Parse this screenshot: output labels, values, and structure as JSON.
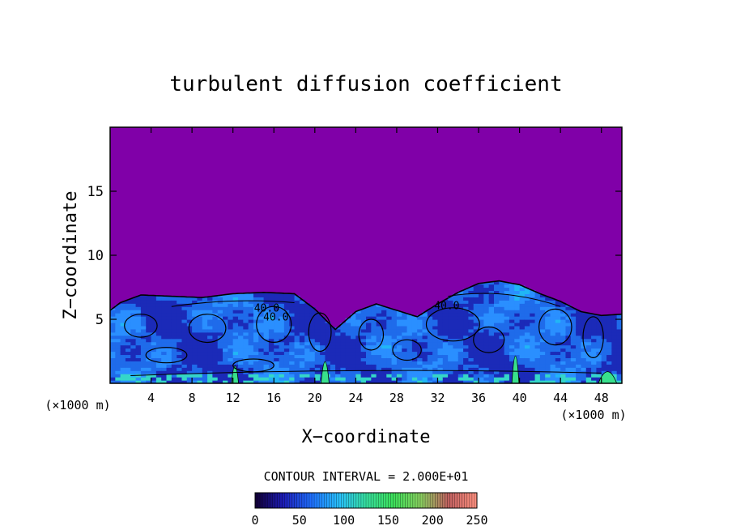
{
  "chart_data": {
    "type": "heatmap",
    "title": "turbulent diffusion coefficient",
    "xlabel": "X−coordinate",
    "ylabel": "Z−coordinate",
    "x_unit": "(×1000 m)",
    "y_unit": "(×1000 m)",
    "xlim": [
      0,
      50
    ],
    "ylim": [
      0,
      20
    ],
    "xticks": [
      4,
      8,
      12,
      16,
      20,
      24,
      28,
      32,
      36,
      40,
      44,
      48
    ],
    "yticks": [
      5,
      10,
      15
    ],
    "contour_interval_text": "CONTOUR INTERVAL = 2.000E+01",
    "contour_labels": [
      {
        "text": "40.0",
        "x": 15.3,
        "y": 5.6
      },
      {
        "text": "40.0",
        "x": 16.2,
        "y": 4.9
      },
      {
        "text": "40.0",
        "x": 32.9,
        "y": 5.8
      }
    ],
    "colorbar": {
      "min": 0,
      "max": 250,
      "ticks": [
        0,
        50,
        100,
        150,
        200,
        250
      ]
    },
    "boundary_layer_top": [
      [
        0,
        5.7
      ],
      [
        1,
        6.3
      ],
      [
        3,
        6.9
      ],
      [
        6,
        6.8
      ],
      [
        9,
        6.7
      ],
      [
        12,
        7.0
      ],
      [
        15,
        7.1
      ],
      [
        18,
        7.0
      ],
      [
        20,
        5.8
      ],
      [
        22,
        4.2
      ],
      [
        24,
        5.6
      ],
      [
        26,
        6.2
      ],
      [
        28,
        5.7
      ],
      [
        30,
        5.2
      ],
      [
        32,
        6.2
      ],
      [
        34,
        7.1
      ],
      [
        36,
        7.8
      ],
      [
        38,
        8.0
      ],
      [
        40,
        7.7
      ],
      [
        42,
        7.0
      ],
      [
        44,
        6.4
      ],
      [
        46,
        5.6
      ],
      [
        48,
        5.3
      ],
      [
        50,
        5.4
      ]
    ]
  },
  "colors": {
    "background": "#8000a8",
    "cmap": [
      "#12003a",
      "#1d1db8",
      "#1f6fff",
      "#28c0ff",
      "#36e0a0",
      "#3ce05a",
      "#8ad060",
      "#c06060",
      "#ff9080"
    ],
    "field": [
      "#1b2ab8",
      "#1f6bea",
      "#2a8fff",
      "#21b6f5",
      "#35d6c8",
      "#38e08c"
    ]
  }
}
